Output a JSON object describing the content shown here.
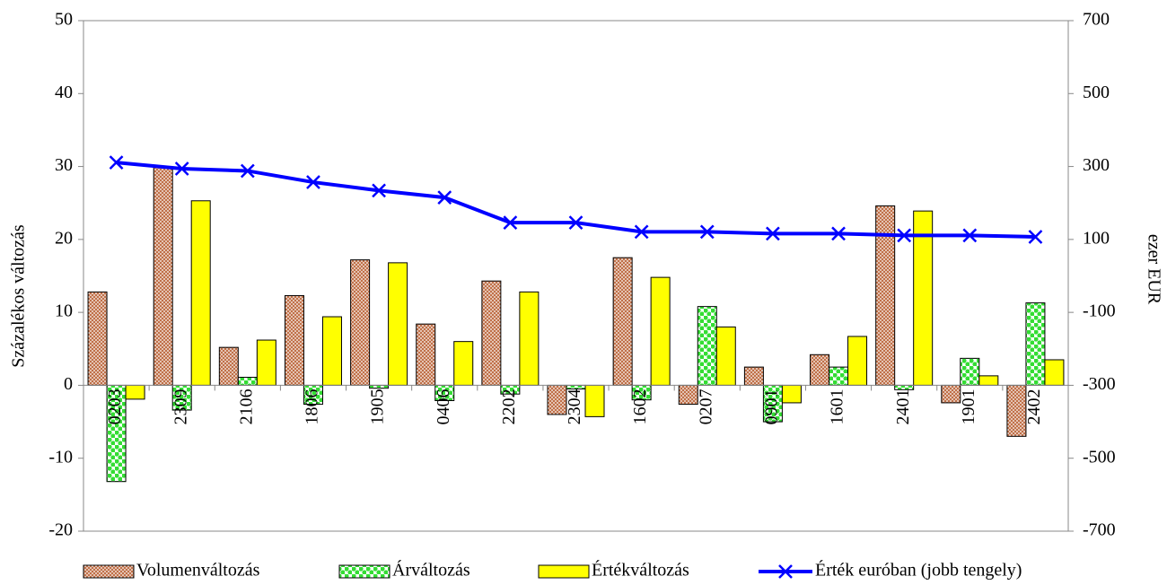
{
  "chart_data": {
    "type": "bar",
    "categories": [
      "0203",
      "2309",
      "2106",
      "1806",
      "1905",
      "0406",
      "2202",
      "2304",
      "1602",
      "0207",
      "0901",
      "1601",
      "2401",
      "1901",
      "2402"
    ],
    "series": [
      {
        "name": "Volumenváltozás",
        "color": "#c07048",
        "pattern": "dots",
        "values": [
          12.8,
          30.0,
          5.2,
          12.3,
          17.2,
          8.4,
          14.3,
          -4.0,
          17.5,
          -2.6,
          2.5,
          4.2,
          24.6,
          -2.4,
          -7.0
        ]
      },
      {
        "name": "Árváltozás",
        "color": "#33dd33",
        "pattern": "checks",
        "values": [
          -13.2,
          -3.4,
          1.1,
          -2.6,
          -0.4,
          -2.1,
          -1.2,
          -0.5,
          -2.0,
          10.8,
          -5.0,
          2.5,
          -0.6,
          3.7,
          11.3
        ]
      },
      {
        "name": "Értékváltozás",
        "color": "#ffff00",
        "values": [
          -1.9,
          25.3,
          6.2,
          9.4,
          16.8,
          6.0,
          12.8,
          -4.3,
          14.8,
          8.0,
          -2.4,
          6.7,
          23.9,
          1.3,
          3.5
        ]
      },
      {
        "name": "Érték euróban (jobb tengely)",
        "type": "line",
        "axis": "y2",
        "color": "#0000ff",
        "marker": "x",
        "values": [
          311,
          294,
          288,
          257,
          234,
          215,
          146,
          146,
          121,
          121,
          116,
          116,
          111,
          111,
          107
        ]
      }
    ],
    "ylabel": "Százalékos változás",
    "y2label": "ezer EUR",
    "ylim": [
      -20,
      50
    ],
    "yticks": [
      -20,
      -10,
      0,
      10,
      20,
      30,
      40,
      50
    ],
    "y2lim": [
      -700,
      700
    ],
    "y2ticks": [
      -700,
      -500,
      -300,
      -100,
      100,
      300,
      500,
      700
    ],
    "legend": "bottom"
  }
}
